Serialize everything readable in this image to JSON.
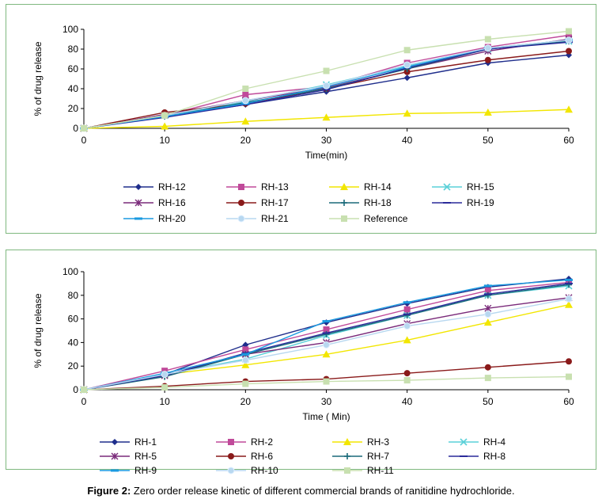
{
  "caption": {
    "label": "Figure 2:",
    "text": "Zero order release kinetic of different commercial brands of ranitidine hydrochloride."
  },
  "chart_data": [
    {
      "type": "line",
      "xlabel": "Time(min)",
      "ylabel": "% of drug release",
      "xlim": [
        0,
        60
      ],
      "ylim": [
        0,
        100
      ],
      "x": [
        0,
        10,
        20,
        30,
        40,
        50,
        60
      ],
      "xticks": [
        0,
        10,
        20,
        30,
        40,
        50,
        60
      ],
      "yticks": [
        0,
        20,
        40,
        60,
        80,
        100
      ],
      "grid": false,
      "legend_position": "bottom",
      "series": [
        {
          "name": "RH-12",
          "color": "#1f2e8c",
          "marker": "diamond",
          "values": [
            0,
            12,
            24,
            37,
            51,
            66,
            74
          ]
        },
        {
          "name": "RH-13",
          "color": "#c04a9a",
          "marker": "square",
          "values": [
            0,
            13,
            34,
            42,
            66,
            82,
            94
          ]
        },
        {
          "name": "RH-14",
          "color": "#f2e600",
          "marker": "triangle",
          "values": [
            0,
            2,
            7,
            11,
            15,
            16,
            19
          ]
        },
        {
          "name": "RH-15",
          "color": "#5ad0d8",
          "marker": "x",
          "values": [
            0,
            13,
            27,
            44,
            63,
            80,
            88
          ]
        },
        {
          "name": "RH-16",
          "color": "#7a2a7a",
          "marker": "star",
          "values": [
            0,
            14,
            28,
            41,
            60,
            78,
            90
          ]
        },
        {
          "name": "RH-17",
          "color": "#8a1a1a",
          "marker": "circle",
          "values": [
            0,
            16,
            25,
            40,
            57,
            69,
            78
          ]
        },
        {
          "name": "RH-18",
          "color": "#1a6a7a",
          "marker": "plus",
          "values": [
            0,
            12,
            26,
            40,
            60,
            80,
            88
          ]
        },
        {
          "name": "RH-19",
          "color": "#2a2a9a",
          "marker": "dash",
          "values": [
            0,
            11,
            24,
            39,
            61,
            80,
            87
          ]
        },
        {
          "name": "RH-20",
          "color": "#1a9ae0",
          "marker": "bar",
          "values": [
            0,
            12,
            25,
            42,
            62,
            81,
            89
          ]
        },
        {
          "name": "RH-21",
          "color": "#b8d8f0",
          "marker": "circle-open",
          "values": [
            0,
            13,
            28,
            43,
            64,
            81,
            89
          ]
        },
        {
          "name": "Reference",
          "color": "#c8e0b0",
          "marker": "square",
          "values": [
            0,
            13,
            40,
            58,
            79,
            90,
            98
          ]
        }
      ]
    },
    {
      "type": "line",
      "xlabel": "Time ( Min)",
      "ylabel": "% of drug release",
      "xlim": [
        0,
        60
      ],
      "ylim": [
        0,
        100
      ],
      "x": [
        0,
        10,
        20,
        30,
        40,
        50,
        60
      ],
      "xticks": [
        0,
        10,
        20,
        30,
        40,
        50,
        60
      ],
      "yticks": [
        0,
        20,
        40,
        60,
        80,
        100
      ],
      "grid": false,
      "legend_position": "bottom",
      "series": [
        {
          "name": "RH-1",
          "color": "#1f2e8c",
          "marker": "diamond",
          "values": [
            0,
            13,
            38,
            57,
            73,
            87,
            94
          ]
        },
        {
          "name": "RH-2",
          "color": "#c04a9a",
          "marker": "square",
          "values": [
            0,
            16,
            34,
            51,
            68,
            84,
            91
          ]
        },
        {
          "name": "RH-3",
          "color": "#f2e600",
          "marker": "triangle",
          "values": [
            0,
            13,
            21,
            30,
            42,
            57,
            72
          ]
        },
        {
          "name": "RH-4",
          "color": "#5ad0d8",
          "marker": "x",
          "values": [
            0,
            13,
            26,
            46,
            63,
            80,
            88
          ]
        },
        {
          "name": "RH-5",
          "color": "#7a2a7a",
          "marker": "star",
          "values": [
            0,
            12,
            30,
            40,
            56,
            69,
            78
          ]
        },
        {
          "name": "RH-6",
          "color": "#8a1a1a",
          "marker": "circle",
          "values": [
            0,
            3,
            7,
            9,
            14,
            19,
            24
          ]
        },
        {
          "name": "RH-7",
          "color": "#1a6a7a",
          "marker": "plus",
          "values": [
            0,
            11,
            30,
            47,
            63,
            80,
            89
          ]
        },
        {
          "name": "RH-8",
          "color": "#2a2a9a",
          "marker": "dash",
          "values": [
            0,
            12,
            31,
            48,
            64,
            81,
            90
          ]
        },
        {
          "name": "RH-9",
          "color": "#1a9ae0",
          "marker": "bar",
          "values": [
            0,
            14,
            30,
            58,
            74,
            88,
            93
          ]
        },
        {
          "name": "RH-10",
          "color": "#b8d8f0",
          "marker": "circle-open",
          "values": [
            0,
            13,
            25,
            38,
            54,
            64,
            77
          ]
        },
        {
          "name": "RH-11",
          "color": "#c8e0b0",
          "marker": "square",
          "values": [
            0,
            2,
            5,
            7,
            8,
            10,
            11
          ]
        }
      ]
    }
  ]
}
